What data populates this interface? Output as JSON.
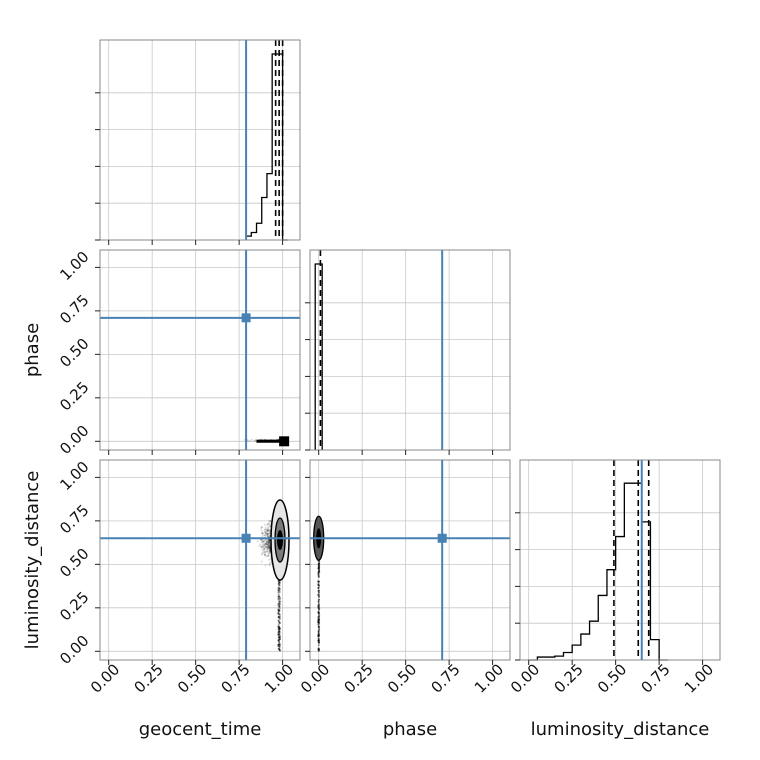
{
  "chart_data": {
    "type": "corner",
    "params": [
      "geocent_time",
      "phase",
      "luminosity_distance"
    ],
    "axis_range": [
      -0.05,
      1.1
    ],
    "ticks": [
      0.0,
      0.25,
      0.5,
      0.75,
      1.0
    ],
    "tick_labels": [
      "0.00",
      "0.25",
      "0.50",
      "0.75",
      "1.00"
    ],
    "grid": true,
    "truths": {
      "geocent_time": 0.79,
      "phase": 0.71,
      "luminosity_distance": 0.65
    },
    "truth_color": "#4682b4",
    "histograms": {
      "geocent_time": {
        "bin_edges": [
          0.79,
          0.82,
          0.85,
          0.88,
          0.91,
          0.94,
          0.97,
          1.0,
          1.03
        ],
        "counts": [
          0.01,
          0.03,
          0.08,
          0.22,
          0.35,
          1.0,
          1.0,
          0.0
        ],
        "quantiles": [
          0.96,
          0.98,
          1.0
        ]
      },
      "phase": {
        "bin_edges": [
          -0.02,
          0.0,
          0.02
        ],
        "counts": [
          1.0,
          1.0
        ],
        "quantiles": [
          0.01
        ]
      },
      "luminosity_distance": {
        "bin_edges": [
          0.0,
          0.05,
          0.1,
          0.15,
          0.2,
          0.25,
          0.3,
          0.35,
          0.4,
          0.45,
          0.5,
          0.55,
          0.6,
          0.65,
          0.7,
          0.75,
          0.8
        ],
        "counts": [
          0.0,
          0.005,
          0.005,
          0.01,
          0.03,
          0.07,
          0.13,
          0.2,
          0.34,
          0.48,
          0.66,
          0.95,
          0.95,
          0.74,
          0.1,
          0.0
        ],
        "quantiles": [
          0.49,
          0.63,
          0.69
        ]
      }
    },
    "scatter": {
      "geocent_time_vs_phase": {
        "x_range": [
          0.78,
          1.02
        ],
        "y_range": [
          0.0,
          0.01
        ]
      },
      "geocent_time_vs_luminosity_distance": {
        "x_range": [
          0.78,
          1.02
        ],
        "y_range": [
          0.0,
          0.8
        ],
        "x_center": 0.98,
        "y_center": 0.63
      },
      "phase_vs_luminosity_distance": {
        "x_range": [
          -0.01,
          0.01
        ],
        "y_range": [
          0.0,
          0.82
        ],
        "y_center": 0.65
      }
    }
  }
}
